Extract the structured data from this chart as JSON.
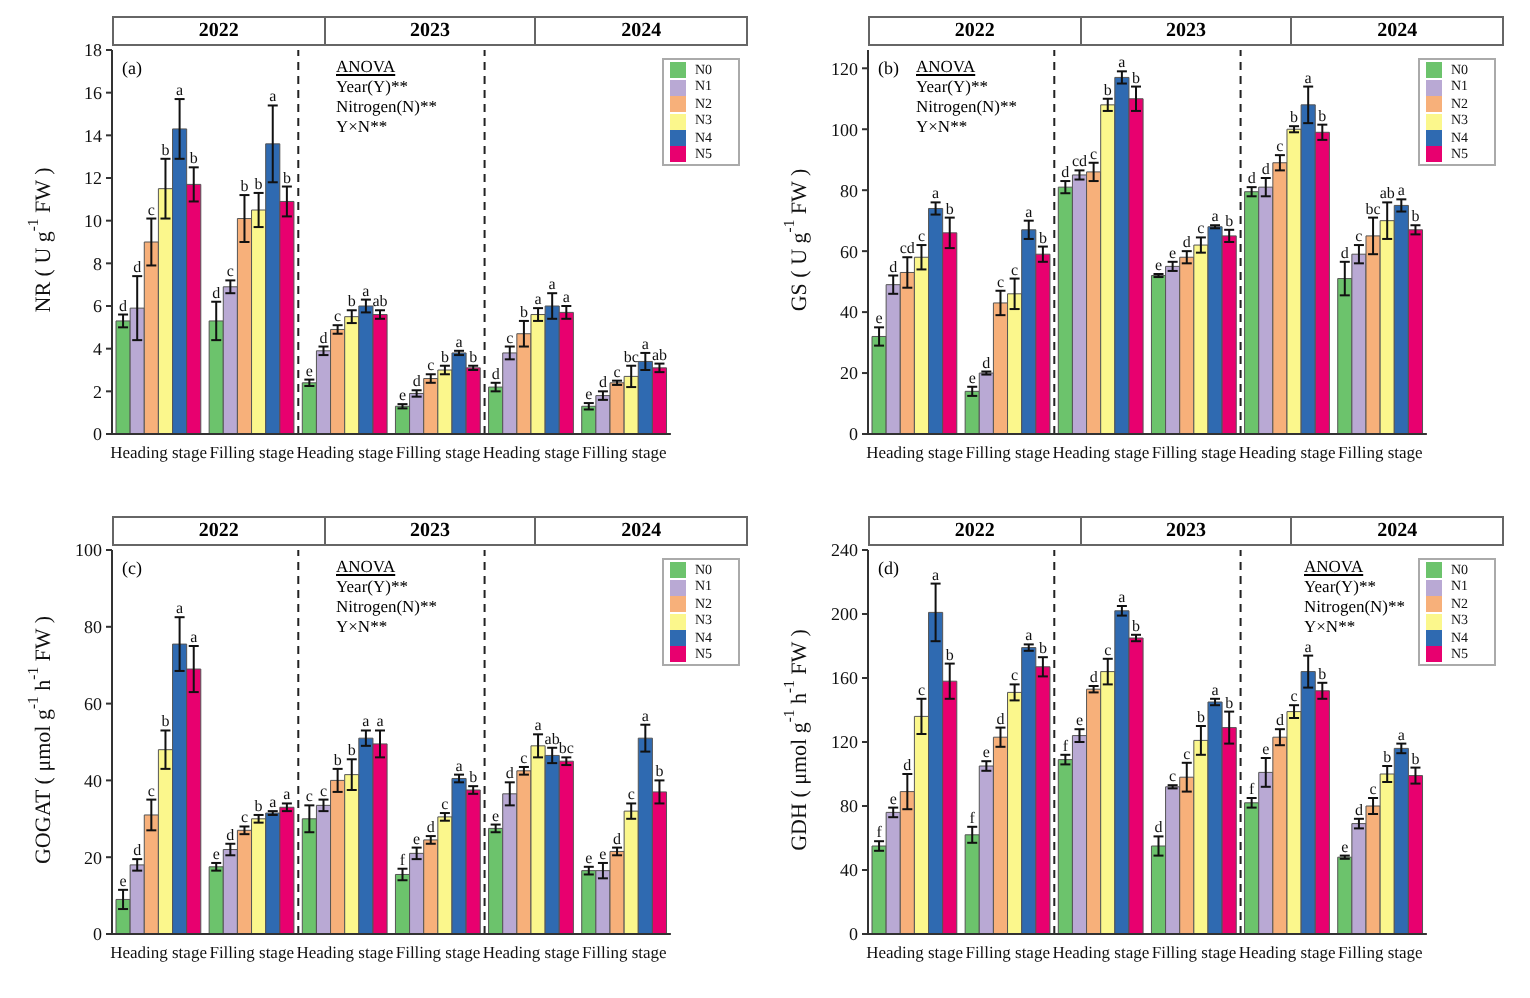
{
  "chart_data": [
    {
      "type": "bar",
      "ylabel": "NR ( U g$^{-1}$ FW )",
      "categories": [
        "Heading stage",
        "Filling stage",
        "Heading stage",
        "Filling stage",
        "Heading stage",
        "Filling stage"
      ],
      "ylim": [
        0,
        18
      ],
      "yticks": [
        0,
        2,
        4,
        6,
        8,
        10,
        12,
        14,
        16,
        18
      ],
      "legend": "top right",
      "annotations": [
        "(a)",
        "ANOVA",
        "Year(Y)**",
        "Nitrogen(N)**",
        "Y×N**",
        "2022",
        "2023",
        "2024"
      ],
      "series": [
        {
          "name": "N0",
          "color": "#6cc36c",
          "values": [
            5.3,
            5.3,
            2.4,
            1.3,
            2.2,
            1.3
          ],
          "errors": [
            0.3,
            0.9,
            0.15,
            0.1,
            0.2,
            0.15
          ],
          "value_labels": [
            "d",
            "d",
            "e",
            "e",
            "d",
            "e"
          ]
        },
        {
          "name": "N1",
          "color": "#b9a9d4",
          "values": [
            5.9,
            6.9,
            3.9,
            1.9,
            3.8,
            1.8
          ],
          "errors": [
            1.5,
            0.3,
            0.2,
            0.15,
            0.3,
            0.2
          ],
          "value_labels": [
            "d",
            "c",
            "d",
            "d",
            "c",
            "d"
          ]
        },
        {
          "name": "N2",
          "color": "#f7b07a",
          "values": [
            9.0,
            10.1,
            4.9,
            2.6,
            4.7,
            2.4
          ],
          "errors": [
            1.1,
            1.1,
            0.2,
            0.2,
            0.6,
            0.1
          ],
          "value_labels": [
            "c",
            "b",
            "c",
            "c",
            "b",
            "c"
          ]
        },
        {
          "name": "N3",
          "color": "#fbf78c",
          "values": [
            11.5,
            10.5,
            5.5,
            3.0,
            5.6,
            2.7
          ],
          "errors": [
            1.4,
            0.8,
            0.3,
            0.2,
            0.3,
            0.5
          ],
          "value_labels": [
            "b",
            "b",
            "b",
            "b",
            "a",
            "bc"
          ]
        },
        {
          "name": "N4",
          "color": "#2f6ab1",
          "values": [
            14.3,
            13.6,
            6.0,
            3.8,
            6.0,
            3.4
          ],
          "errors": [
            1.4,
            1.8,
            0.3,
            0.1,
            0.6,
            0.4
          ],
          "value_labels": [
            "a",
            "a",
            "a",
            "a",
            "a",
            "a"
          ]
        },
        {
          "name": "N5",
          "color": "#e8006f",
          "values": [
            11.7,
            10.9,
            5.6,
            3.1,
            5.7,
            3.1
          ],
          "errors": [
            0.8,
            0.7,
            0.2,
            0.1,
            0.3,
            0.2
          ],
          "value_labels": [
            "b",
            "b",
            "ab",
            "b",
            "a",
            "ab"
          ]
        }
      ]
    },
    {
      "type": "bar",
      "ylabel": "GS ( U g$^{-1}$ FW )",
      "categories": [
        "Heading stage",
        "Filling stage",
        "Heading stage",
        "Filling stage",
        "Heading stage",
        "Filling stage"
      ],
      "ylim": [
        0,
        126
      ],
      "yticks": [
        0,
        20,
        40,
        60,
        80,
        100,
        120
      ],
      "legend": "top right",
      "annotations": [
        "(b)",
        "ANOVA",
        "Year(Y)**",
        "Nitrogen(N)**",
        "Y×N**",
        "2022",
        "2023",
        "2024"
      ],
      "series": [
        {
          "name": "N0",
          "color": "#6cc36c",
          "values": [
            32,
            14,
            81,
            52,
            79.5,
            51
          ],
          "errors": [
            3,
            1.5,
            2,
            0.5,
            1.5,
            5.5
          ],
          "value_labels": [
            "e",
            "e",
            "d",
            "e",
            "d",
            "d"
          ]
        },
        {
          "name": "N1",
          "color": "#b9a9d4",
          "values": [
            49,
            20,
            85,
            55,
            81,
            59
          ],
          "errors": [
            3,
            0.5,
            1.5,
            1.5,
            3,
            3
          ],
          "value_labels": [
            "d",
            "d",
            "cd",
            "e",
            "d",
            "c"
          ]
        },
        {
          "name": "N2",
          "color": "#f7b07a",
          "values": [
            53,
            43,
            86,
            58,
            89,
            65
          ],
          "errors": [
            5,
            4,
            3,
            2,
            2.5,
            6
          ],
          "value_labels": [
            "cd",
            "c",
            "c",
            "d",
            "c",
            "bc"
          ]
        },
        {
          "name": "N3",
          "color": "#fbf78c",
          "values": [
            58,
            46,
            108,
            62,
            100,
            70
          ],
          "errors": [
            4,
            5,
            2,
            2.5,
            1,
            6
          ],
          "value_labels": [
            "c",
            "c",
            "b",
            "c",
            "b",
            "ab"
          ]
        },
        {
          "name": "N4",
          "color": "#2f6ab1",
          "values": [
            74,
            67,
            117,
            68,
            108,
            75
          ],
          "errors": [
            2,
            3,
            2,
            0.5,
            6,
            2
          ],
          "value_labels": [
            "a",
            "a",
            "a",
            "a",
            "a",
            "a"
          ]
        },
        {
          "name": "N5",
          "color": "#e8006f",
          "values": [
            66,
            59,
            110,
            65,
            99,
            67
          ],
          "errors": [
            5,
            2.5,
            4,
            2,
            2.5,
            1.5
          ],
          "value_labels": [
            "b",
            "b",
            "b",
            "b",
            "b",
            "b"
          ]
        }
      ]
    },
    {
      "type": "bar",
      "ylabel": "GOGAT ( μmol g$^{-1}$ h$^{-1}$ FW )",
      "categories": [
        "Heading stage",
        "Filling stage",
        "Heading stage",
        "Filling stage",
        "Heading stage",
        "Filling stage"
      ],
      "ylim": [
        0,
        100
      ],
      "yticks": [
        0,
        20,
        40,
        60,
        80,
        100
      ],
      "legend": "top right",
      "annotations": [
        "(c)",
        "ANOVA",
        "Year(Y)**",
        "Nitrogen(N)**",
        "Y×N**",
        "2022",
        "2023",
        "2024"
      ],
      "series": [
        {
          "name": "N0",
          "color": "#6cc36c",
          "values": [
            9,
            17.5,
            30,
            15.5,
            27.5,
            16.5
          ],
          "errors": [
            2.5,
            1,
            3.5,
            1.5,
            1,
            1
          ],
          "value_labels": [
            "e",
            "e",
            "c",
            "f",
            "e",
            "e"
          ]
        },
        {
          "name": "N1",
          "color": "#b9a9d4",
          "values": [
            18,
            22,
            33.5,
            21,
            36.5,
            16.5
          ],
          "errors": [
            1.5,
            1.5,
            1.5,
            1.5,
            3,
            2
          ],
          "value_labels": [
            "d",
            "d",
            "c",
            "e",
            "d",
            "e"
          ]
        },
        {
          "name": "N2",
          "color": "#f7b07a",
          "values": [
            31,
            27,
            40,
            24.5,
            42.5,
            21.5
          ],
          "errors": [
            4,
            1,
            3,
            1,
            1,
            1
          ],
          "value_labels": [
            "c",
            "c",
            "b",
            "d",
            "c",
            "d"
          ]
        },
        {
          "name": "N3",
          "color": "#fbf78c",
          "values": [
            48,
            30,
            41.5,
            30.5,
            49,
            32
          ],
          "errors": [
            5,
            1,
            4,
            1,
            3,
            2
          ],
          "value_labels": [
            "b",
            "b",
            "b",
            "c",
            "a",
            "c"
          ]
        },
        {
          "name": "N4",
          "color": "#2f6ab1",
          "values": [
            75.5,
            31.5,
            51,
            40.5,
            46.5,
            51
          ],
          "errors": [
            7,
            0.5,
            2,
            1,
            2,
            3.5
          ],
          "value_labels": [
            "a",
            "a",
            "a",
            "a",
            "ab",
            "a"
          ]
        },
        {
          "name": "N5",
          "color": "#e8006f",
          "values": [
            69,
            33,
            49.5,
            37.5,
            45,
            37
          ],
          "errors": [
            6,
            1,
            3.5,
            1,
            1,
            3
          ],
          "value_labels": [
            "a",
            "a",
            "a",
            "b",
            "bc",
            "b"
          ]
        }
      ]
    },
    {
      "type": "bar",
      "ylabel": "GDH ( μmol g$^{-1}$ h$^{-1}$ FW )",
      "categories": [
        "Heading stage",
        "Filling stage",
        "Heading stage",
        "Filling stage",
        "Heading stage",
        "Filling stage"
      ],
      "ylim": [
        0,
        240
      ],
      "yticks": [
        0,
        40,
        80,
        120,
        160,
        200,
        240
      ],
      "legend": "top right",
      "annotations": [
        "(d)",
        "ANOVA",
        "Year(Y)**",
        "Nitrogen(N)**",
        "Y×N**",
        "2022",
        "2023",
        "2024"
      ],
      "series": [
        {
          "name": "N0",
          "color": "#6cc36c",
          "values": [
            55,
            62,
            109,
            55,
            82,
            48
          ],
          "errors": [
            3,
            5,
            3,
            6,
            3,
            1
          ],
          "value_labels": [
            "f",
            "f",
            "f",
            "d",
            "f",
            "e"
          ]
        },
        {
          "name": "N1",
          "color": "#b9a9d4",
          "values": [
            76,
            105,
            124,
            92,
            101,
            69
          ],
          "errors": [
            3,
            3,
            4,
            1,
            9,
            3
          ],
          "value_labels": [
            "e",
            "e",
            "e",
            "c",
            "e",
            "d"
          ]
        },
        {
          "name": "N2",
          "color": "#f7b07a",
          "values": [
            89,
            123,
            153,
            98,
            123,
            80
          ],
          "errors": [
            11,
            6,
            2,
            9,
            5,
            5
          ],
          "value_labels": [
            "d",
            "d",
            "d",
            "c",
            "d",
            "c"
          ]
        },
        {
          "name": "N3",
          "color": "#fbf78c",
          "values": [
            136,
            151,
            164,
            121,
            139,
            100
          ],
          "errors": [
            11,
            5,
            8,
            9,
            4,
            5
          ],
          "value_labels": [
            "c",
            "c",
            "c",
            "b",
            "c",
            "b"
          ]
        },
        {
          "name": "N4",
          "color": "#2f6ab1",
          "values": [
            201,
            179,
            202,
            145,
            164,
            116
          ],
          "errors": [
            18,
            2,
            3,
            2,
            10,
            3
          ],
          "value_labels": [
            "a",
            "a",
            "a",
            "a",
            "a",
            "a"
          ]
        },
        {
          "name": "N5",
          "color": "#e8006f",
          "values": [
            158,
            167,
            185,
            129,
            152,
            99
          ],
          "errors": [
            11,
            6,
            2,
            10,
            5,
            5
          ],
          "value_labels": [
            "b",
            "b",
            "b",
            "b",
            "b",
            "b"
          ]
        }
      ]
    }
  ]
}
